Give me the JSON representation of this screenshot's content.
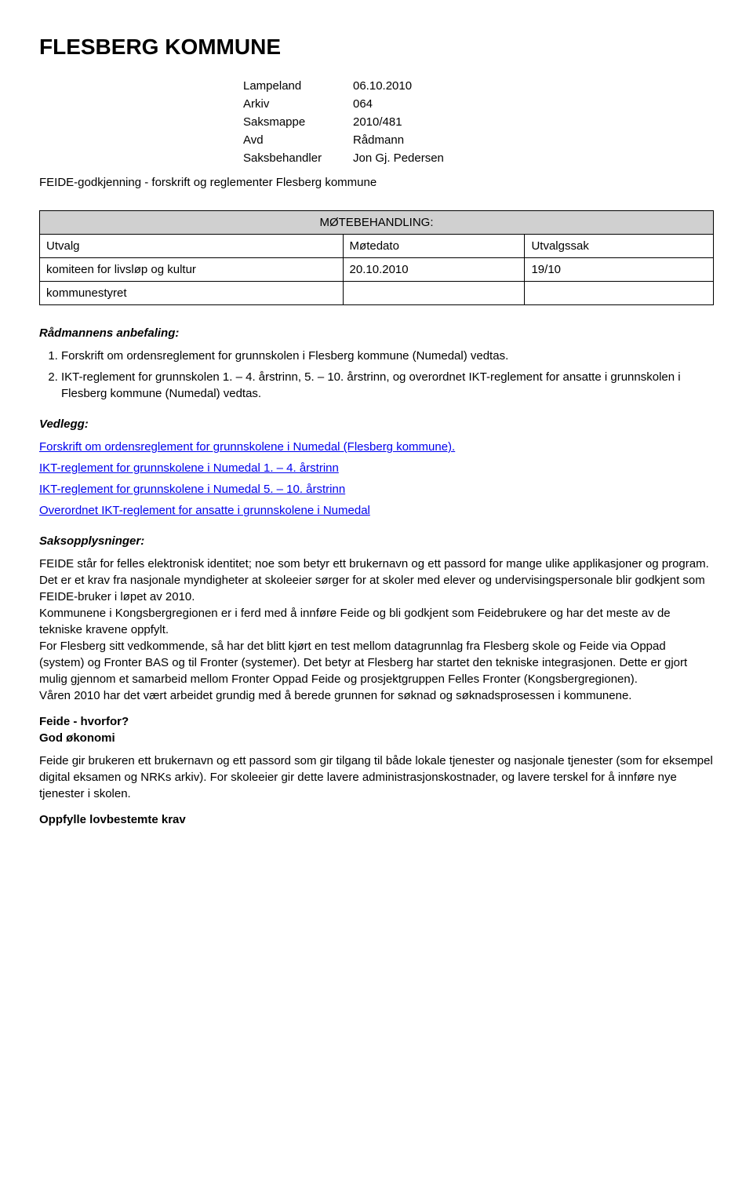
{
  "title": "FLESBERG KOMMUNE",
  "meta": {
    "rows": [
      {
        "label": "Lampeland",
        "value": "06.10.2010"
      },
      {
        "label": "Arkiv",
        "value": "064"
      },
      {
        "label": "Saksmappe",
        "value": "2010/481"
      },
      {
        "label": "Avd",
        "value": "Rådmann"
      },
      {
        "label": "Saksbehandler",
        "value": "Jon Gj. Pedersen"
      }
    ]
  },
  "subtitle": "FEIDE-godkjenning - forskrift og reglementer Flesberg kommune",
  "mote": {
    "header": "MØTEBEHANDLING:",
    "columns": [
      "Utvalg",
      "Møtedato",
      "Utvalgssak"
    ],
    "rows": [
      {
        "utvalg": "komiteen for livsløp og kultur",
        "dato": "20.10.2010",
        "sak": "19/10"
      },
      {
        "utvalg": "kommunestyret",
        "dato": "",
        "sak": ""
      }
    ]
  },
  "anbefaling": {
    "heading": "Rådmannens anbefaling:",
    "items": [
      "Forskrift om ordensreglement for grunnskolen i Flesberg kommune (Numedal) vedtas.",
      "IKT-reglement for grunnskolen 1. – 4. årstrinn, 5. – 10. årstrinn, og overordnet IKT-reglement for ansatte i grunnskolen i Flesberg kommune (Numedal) vedtas."
    ]
  },
  "vedlegg": {
    "heading": "Vedlegg:",
    "links": [
      "Forskrift om ordensreglement for grunnskolene i Numedal (Flesberg kommune).",
      "IKT-reglement for grunnskolene i Numedal 1. – 4. årstrinn",
      "IKT-reglement for grunnskolene i Numedal 5. – 10. årstrinn",
      "Overordnet IKT-reglement for ansatte i grunnskolene i Numedal"
    ]
  },
  "saksopp": {
    "heading": "Saksopplysninger:",
    "paragraphs": [
      "FEIDE står for felles elektronisk identitet; noe som betyr ett brukernavn og ett passord for mange ulike applikasjoner og program.",
      "Det er et krav fra nasjonale myndigheter at skoleeier sørger for at skoler med elever og undervisingspersonale blir godkjent som FEIDE-bruker i løpet av 2010.",
      "Kommunene i Kongsbergregionen er i ferd med å innføre Feide og bli godkjent som Feidebrukere og har det meste av de tekniske kravene oppfylt.",
      "For Flesberg sitt vedkommende, så har det blitt kjørt en test mellom datagrunnlag fra Flesberg skole og Feide via Oppad (system) og Fronter BAS og til Fronter (systemer). Det betyr at Flesberg har startet den tekniske integrasjonen. Dette er gjort mulig gjennom et samarbeid mellom Fronter Oppad Feide og prosjektgruppen Felles Fronter (Kongsbergregionen).",
      "Våren 2010 har det vært arbeidet grundig med å berede grunnen for søknad og søknadsprosessen i kommunene."
    ]
  },
  "feide_hvorfor": {
    "heading": "Feide - hvorfor?",
    "sub1_heading": "God økonomi",
    "sub1_text": "Feide gir brukeren ett brukernavn og ett passord som gir tilgang til både lokale tjenester og nasjonale tjenester (som for eksempel digital eksamen og NRKs arkiv). For skoleeier gir dette lavere administrasjonskostnader, og lavere terskel for å innføre nye tjenester i skolen.",
    "sub2_heading": "Oppfylle lovbestemte krav"
  }
}
